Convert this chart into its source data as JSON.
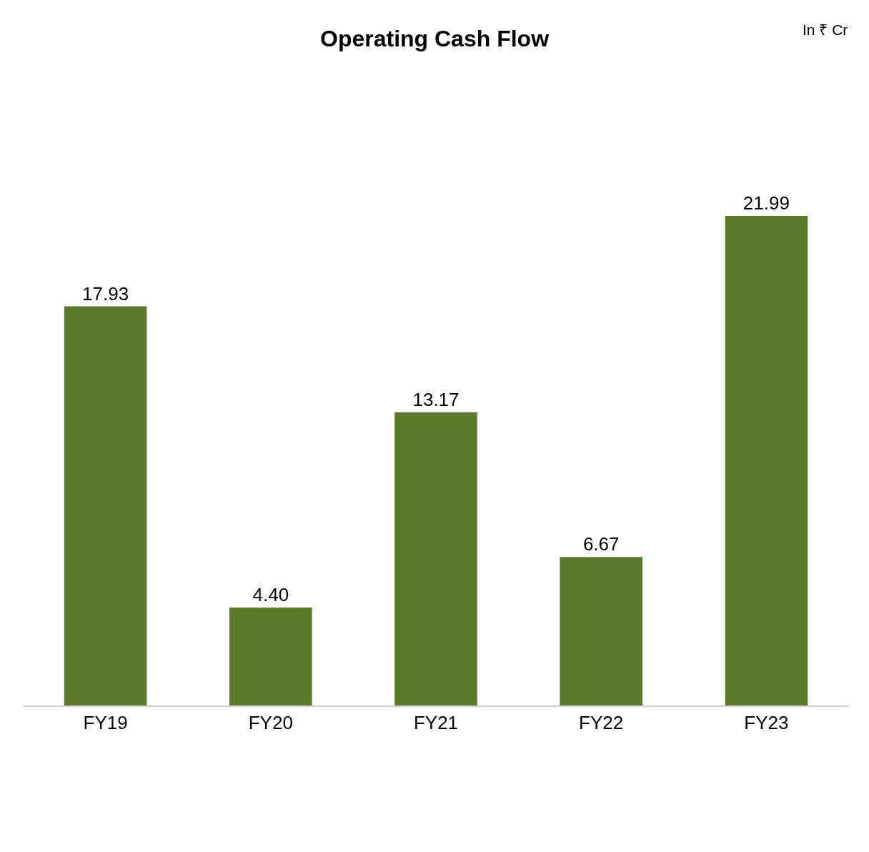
{
  "chart_data": {
    "type": "bar",
    "title": "Operating Cash Flow",
    "categories": [
      "FY19",
      "FY20",
      "FY21",
      "FY22",
      "FY23"
    ],
    "values": [
      17.93,
      4.4,
      13.17,
      6.67,
      21.99
    ],
    "value_labels": [
      "17.93",
      "4.40",
      "13.17",
      "6.67",
      "21.99"
    ],
    "color": "#5b7b2b",
    "annotations": [
      "In ₹ Cr"
    ]
  }
}
